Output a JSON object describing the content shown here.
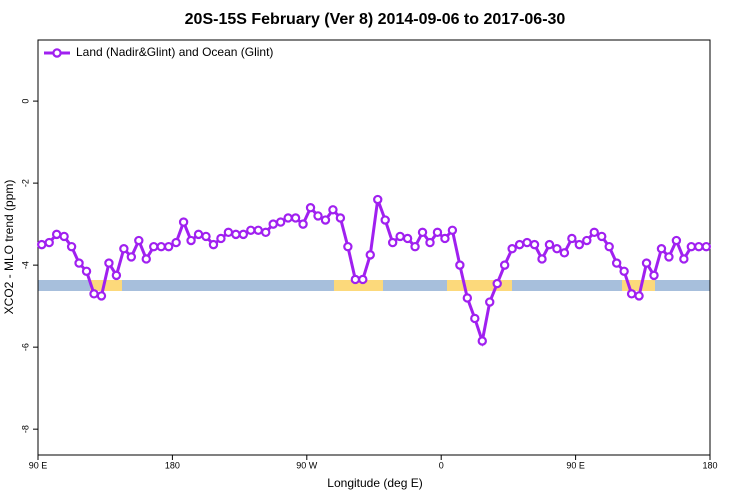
{
  "chart_data": {
    "type": "line",
    "title": "20S-15S February (Ver 8)   2014-09-06 to 2017-06-30",
    "xlabel": "Longitude (deg E)",
    "ylabel": "XCO2 - MLO trend (ppm)",
    "legend": "top-left",
    "xlim": [
      90,
      540
    ],
    "ylim": [
      -8.63,
      1.49
    ],
    "xticks": [
      {
        "value": 90,
        "label": "90 E"
      },
      180,
      {
        "value": 270,
        "label": "90 W"
      },
      {
        "value": 360,
        "label": "0"
      },
      {
        "value": 450,
        "label": "90 E"
      },
      {
        "value": 540,
        "label": "180"
      }
    ],
    "yticks": [
      0,
      -2,
      -4,
      -6,
      -8
    ],
    "x": [
      92.5,
      97.5,
      102.5,
      107.5,
      112.5,
      117.5,
      122.5,
      127.5,
      132.5,
      137.5,
      142.5,
      147.5,
      152.5,
      157.5,
      162.5,
      167.5,
      172.5,
      177.5,
      182.5,
      187.5,
      192.5,
      197.5,
      202.5,
      207.5,
      212.5,
      217.5,
      222.5,
      227.5,
      232.5,
      237.5,
      242.5,
      247.5,
      252.5,
      257.5,
      262.5,
      267.5,
      272.5,
      277.5,
      282.5,
      287.5,
      292.5,
      297.5,
      302.5,
      307.5,
      312.5,
      317.5,
      322.5,
      327.5,
      332.5,
      337.5,
      342.5,
      347.5,
      352.5,
      357.5,
      362.5,
      367.5,
      372.5,
      377.5,
      382.5,
      387.5,
      392.5,
      397.5,
      402.5,
      407.5,
      412.5,
      417.5,
      422.5,
      427.5,
      432.5,
      437.5,
      442.5,
      447.5,
      452.5,
      457.5,
      462.5,
      467.5,
      472.5,
      477.5,
      482.5,
      487.5,
      492.5,
      497.5,
      502.5,
      507.5,
      512.5,
      517.5,
      522.5,
      527.5,
      532.5,
      537.5
    ],
    "series": [
      {
        "name": "Land (Nadir&Glint) and Ocean (Glint)",
        "color": "#a020f0",
        "values": [
          -3.5,
          -3.45,
          -3.25,
          -3.3,
          -3.55,
          -3.95,
          -4.15,
          -4.7,
          -4.75,
          -3.95,
          -4.25,
          -3.6,
          -3.8,
          -3.4,
          -3.85,
          -3.55,
          -3.55,
          -3.55,
          -3.45,
          -2.95,
          -3.4,
          -3.25,
          -3.3,
          -3.5,
          -3.35,
          -3.2,
          -3.25,
          -3.25,
          -3.15,
          -3.15,
          -3.2,
          -3.0,
          -2.95,
          -2.85,
          -2.85,
          -3.0,
          -2.6,
          -2.8,
          -2.9,
          -2.65,
          -2.85,
          -3.55,
          -4.35,
          -4.35,
          -3.75,
          -2.4,
          -2.9,
          -3.45,
          -3.3,
          -3.35,
          -3.55,
          -3.2,
          -3.45,
          -3.2,
          -3.35,
          -3.15,
          -4.0,
          -4.8,
          -5.3,
          -5.85,
          -4.9,
          -4.45,
          -4.0,
          -3.6,
          -3.5,
          -3.45,
          -3.5,
          -3.85,
          -3.5,
          -3.6,
          -3.7,
          -3.35,
          -3.5,
          -3.4,
          -3.2,
          -3.3,
          -3.55,
          -3.95,
          -4.15,
          -4.7,
          -4.75,
          -3.95,
          -4.25,
          -3.6,
          -3.8,
          -3.4,
          -3.85,
          -3.55,
          -3.55,
          -3.55
        ]
      }
    ]
  }
}
